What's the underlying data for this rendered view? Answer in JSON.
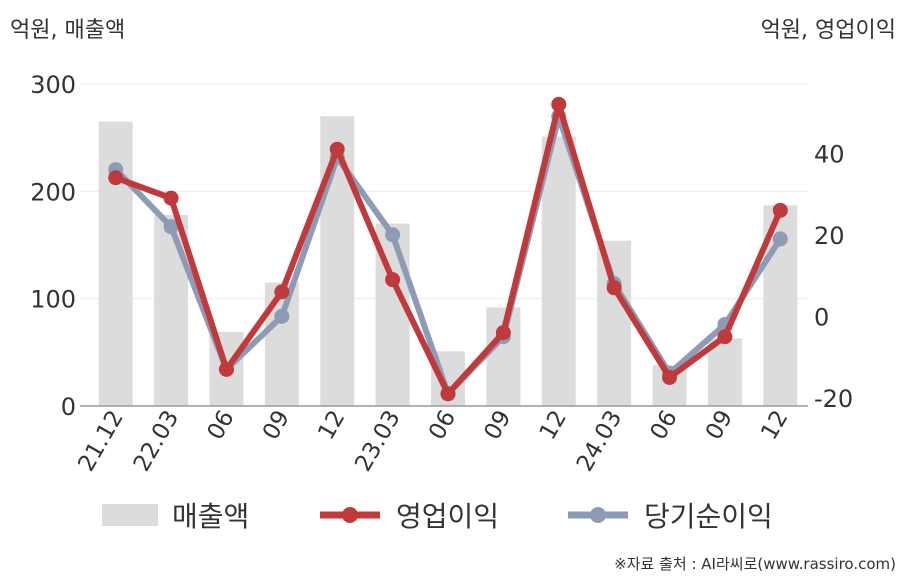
{
  "units": {
    "left": "억원, 매출액",
    "right": "억원, 영업이익"
  },
  "source": "※자료 출처 : AI라씨로(www.rassiro.com)",
  "chart_data": {
    "type": "bar+line",
    "categories": [
      "21.12",
      "22.03",
      "06",
      "09",
      "12",
      "23.03",
      "06",
      "09",
      "12",
      "24.03",
      "06",
      "09",
      "12"
    ],
    "series": [
      {
        "name": "매출액",
        "type": "bar",
        "axis": "left",
        "color": "#dcdcdc",
        "values": [
          265,
          178,
          69,
          115,
          270,
          170,
          51,
          92,
          251,
          154,
          38,
          63,
          187
        ]
      },
      {
        "name": "영업이익",
        "type": "line",
        "axis": "right",
        "color": "#c0393b",
        "values": [
          34,
          29,
          -13,
          6,
          41,
          9,
          -19,
          -4,
          52,
          7,
          -15,
          -5,
          26
        ]
      },
      {
        "name": "당기순이익",
        "type": "line",
        "axis": "right",
        "color": "#8e9bb5",
        "values": [
          36,
          22,
          -13,
          0,
          39,
          20,
          -19,
          -5,
          49,
          8,
          -14,
          -2,
          19
        ]
      }
    ],
    "y_left": {
      "ticks": [
        0,
        100,
        200,
        300
      ],
      "range": [
        0,
        300
      ]
    },
    "y_right": {
      "ticks": [
        -20,
        0,
        20,
        40
      ],
      "range": [
        -22,
        57
      ]
    },
    "grid": true,
    "legend": "bottom"
  }
}
